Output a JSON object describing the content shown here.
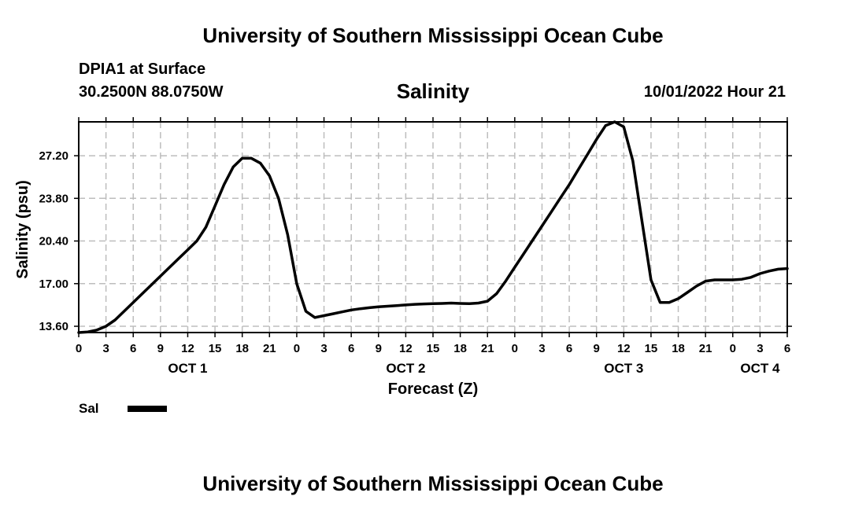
{
  "header": {
    "title": "University of Southern Mississippi Ocean Cube",
    "station": "DPIA1 at Surface",
    "coordinates": "30.2500N  88.0750W",
    "chart_name": "Salinity",
    "datetime": "10/01/2022 Hour 21"
  },
  "footer": {
    "title": "University of Southern Mississippi Ocean Cube"
  },
  "chart_data": {
    "type": "line",
    "title": "Salinity",
    "xlabel": "Forecast (Z)",
    "ylabel": "Salinity (psu)",
    "xlim": [
      0,
      78
    ],
    "ylim": [
      13.1,
      29.9
    ],
    "yticks": [
      13.6,
      17.0,
      20.4,
      23.8,
      27.2
    ],
    "ytick_labels": [
      "13.60",
      "17.00",
      "20.40",
      "23.80",
      "27.20"
    ],
    "xticks": [
      0,
      3,
      6,
      9,
      12,
      15,
      18,
      21,
      24,
      27,
      30,
      33,
      36,
      39,
      42,
      45,
      48,
      51,
      54,
      57,
      60,
      63,
      66,
      69,
      72,
      75,
      78
    ],
    "xtick_labels": [
      "0",
      "3",
      "6",
      "9",
      "12",
      "15",
      "18",
      "21",
      "0",
      "3",
      "6",
      "9",
      "12",
      "15",
      "18",
      "21",
      "0",
      "3",
      "6",
      "9",
      "12",
      "15",
      "18",
      "21",
      "0",
      "3",
      "6"
    ],
    "day_labels": [
      {
        "x": 12,
        "label": "OCT 1"
      },
      {
        "x": 36,
        "label": "OCT 2"
      },
      {
        "x": 60,
        "label": "OCT 3"
      },
      {
        "x": 75,
        "label": "OCT 4"
      }
    ],
    "grid": true,
    "legend": {
      "placement": "bottom-left",
      "entries": [
        {
          "name": "Sal",
          "color": "#000000"
        }
      ]
    },
    "series": [
      {
        "name": "Sal",
        "color": "#000000",
        "x": [
          0,
          1,
          2,
          3,
          4,
          5,
          6,
          7,
          8,
          9,
          10,
          11,
          12,
          13,
          14,
          15,
          16,
          17,
          18,
          19,
          20,
          21,
          22,
          23,
          24,
          25,
          26,
          27,
          28,
          29,
          30,
          31,
          32,
          33,
          34,
          35,
          36,
          37,
          38,
          39,
          40,
          41,
          42,
          43,
          44,
          45,
          46,
          47,
          48,
          49,
          50,
          51,
          52,
          53,
          54,
          55,
          56,
          57,
          58,
          59,
          60,
          61,
          62,
          63,
          64,
          65,
          66,
          67,
          68,
          69,
          70,
          71,
          72,
          73,
          74,
          75,
          76,
          77,
          78
        ],
        "values": [
          13.1,
          13.15,
          13.3,
          13.6,
          14.1,
          14.8,
          15.5,
          16.2,
          16.9,
          17.6,
          18.3,
          19.0,
          19.7,
          20.4,
          21.5,
          23.2,
          24.9,
          26.3,
          27.0,
          27.0,
          26.6,
          25.6,
          23.8,
          20.9,
          17.0,
          14.8,
          14.3,
          14.45,
          14.6,
          14.75,
          14.9,
          15.0,
          15.08,
          15.15,
          15.2,
          15.25,
          15.3,
          15.35,
          15.38,
          15.4,
          15.42,
          15.45,
          15.42,
          15.4,
          15.45,
          15.6,
          16.2,
          17.2,
          18.3,
          19.4,
          20.5,
          21.6,
          22.7,
          23.8,
          24.9,
          26.1,
          27.3,
          28.5,
          29.6,
          29.9,
          29.5,
          26.8,
          22.0,
          17.3,
          15.5,
          15.5,
          15.8,
          16.3,
          16.8,
          17.2,
          17.3,
          17.3,
          17.3,
          17.35,
          17.5,
          17.8,
          18.0,
          18.15,
          18.2
        ]
      }
    ]
  }
}
